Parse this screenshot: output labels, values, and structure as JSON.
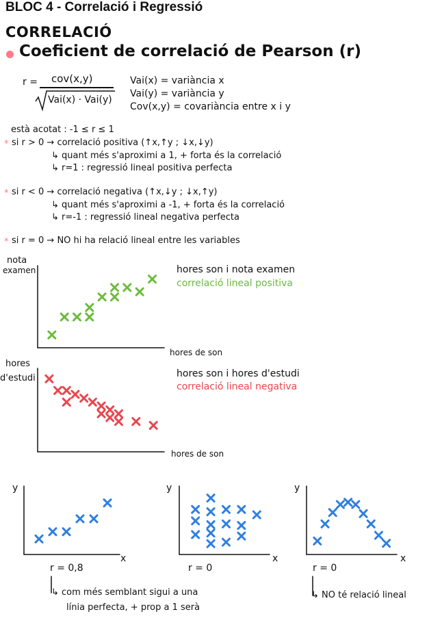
{
  "title": "BLOC 4 - Correlació i Regressió",
  "section": "CORRELACIÓ",
  "subsection": "Coeficient de correlació de Pearson (r)",
  "formula": {
    "lhs": "r =",
    "numerator": "cov(x,y)",
    "denominator": "Vai(x) · Vai(y)",
    "defs": [
      "Vai(x) = variància x",
      "Vai(y) = variància y",
      "Cov(x,y) = covariància entre x i y"
    ]
  },
  "bounded": "està acotat : -1 ≤ r ≤ 1",
  "cases": [
    {
      "main": "si r > 0 → correlació positiva (↑x,↑y ; ↓x,↓y)",
      "sub1": "↳ quant més s'aproximi a 1, + forta és la correlació",
      "sub2": "↳ r=1 : regressió lineal positiva perfecta"
    },
    {
      "main": "si r < 0 → correlació negativa (↑x,↓y ; ↓x,↑y)",
      "sub1": "↳ quant més s'aproximi a -1, + forta és la correlació",
      "sub2": "↳ r=-1 : regressió lineal negativa perfecta"
    },
    {
      "main": "si r = 0 → NO hi ha relació lineal entre les variables"
    }
  ],
  "star": "*",
  "plot1": {
    "ylabel_1": "nota",
    "ylabel_2": "examen",
    "xlabel": "hores de son",
    "desc": "hores son i nota examen",
    "desc_color_text": "correlació lineal positiva",
    "color": "#6dbb3c",
    "points": [
      [
        1,
        1
      ],
      [
        2,
        2.7
      ],
      [
        3,
        2.7
      ],
      [
        4,
        2.7
      ],
      [
        4,
        3.6
      ],
      [
        5,
        4.6
      ],
      [
        6,
        4.6
      ],
      [
        6,
        5.5
      ],
      [
        7,
        5.5
      ],
      [
        8,
        5.1
      ],
      [
        9,
        6.3
      ]
    ]
  },
  "plot2": {
    "ylabel_1": "hores",
    "ylabel_2": "d'estudi",
    "xlabel": "hores de son",
    "desc": "hores son i hores d'estudi",
    "desc_color_text": "correlació lineal negativa",
    "color": "#e8474f",
    "points": [
      [
        1,
        9
      ],
      [
        2,
        7.5
      ],
      [
        3,
        7.5
      ],
      [
        3,
        6
      ],
      [
        4,
        7
      ],
      [
        5,
        6.5
      ],
      [
        6,
        6
      ],
      [
        7,
        5.5
      ],
      [
        7,
        4.5
      ],
      [
        8,
        5
      ],
      [
        8,
        4
      ],
      [
        9,
        4.5
      ],
      [
        9,
        3.5
      ],
      [
        11,
        3.5
      ],
      [
        13,
        3
      ]
    ]
  },
  "small_plots": [
    {
      "ylabel": "y",
      "xlabel": "x",
      "r_label": "r = 0,8",
      "note_1": "↳ com més semblant sigui a una",
      "note_2": "línia perfecta, + prop a 1 serà",
      "points": [
        [
          1,
          1
        ],
        [
          2,
          1.5
        ],
        [
          3,
          1.5
        ],
        [
          4,
          2.4
        ],
        [
          5,
          2.4
        ],
        [
          6,
          3.5
        ]
      ]
    },
    {
      "ylabel": "y",
      "xlabel": "x",
      "r_label": "r = 0",
      "note_1": "",
      "points": [
        [
          2,
          7
        ],
        [
          1,
          5.5
        ],
        [
          2,
          5.2
        ],
        [
          3,
          5.5
        ],
        [
          4,
          5.5
        ],
        [
          5,
          4.8
        ],
        [
          1,
          4
        ],
        [
          2,
          3.5
        ],
        [
          3,
          3.6
        ],
        [
          4,
          3.4
        ],
        [
          1,
          2.2
        ],
        [
          2,
          2.4
        ],
        [
          4,
          2
        ],
        [
          2,
          1
        ],
        [
          3,
          1.2
        ]
      ]
    },
    {
      "ylabel": "y",
      "xlabel": "x",
      "r_label": "r = 0",
      "note_1": "↳ NO té relació lineal",
      "points": [
        [
          1,
          1
        ],
        [
          2,
          2.5
        ],
        [
          3,
          3.5
        ],
        [
          4,
          4.2
        ],
        [
          5,
          4.4
        ],
        [
          6,
          4.2
        ],
        [
          7,
          3.4
        ],
        [
          8,
          2.5
        ],
        [
          9,
          1.5
        ],
        [
          10,
          0.8
        ]
      ]
    }
  ],
  "blue": "#2f7fe0"
}
